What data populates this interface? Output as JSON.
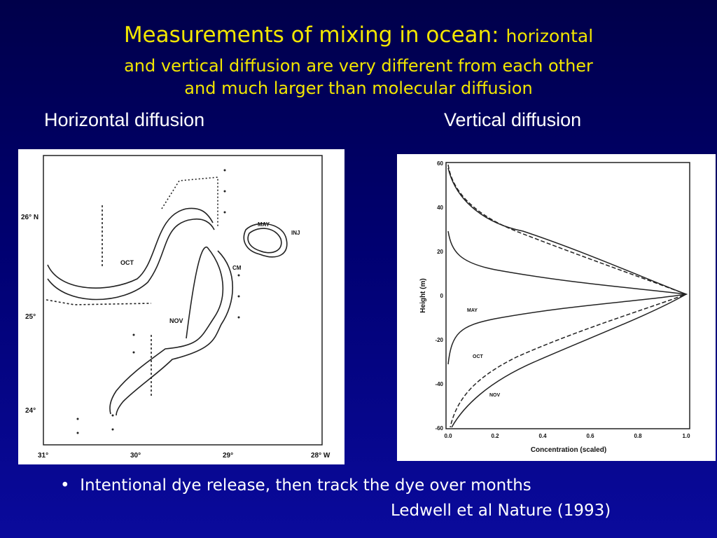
{
  "title": {
    "main": "Measurements of mixing in ocean:",
    "sub": "horizontal",
    "line2": "and vertical diffusion are very different from each other",
    "line3": "and much larger than molecular diffusion"
  },
  "panels": [
    {
      "heading": "Horizontal diffusion",
      "figure": {
        "lat_labels": [
          "26° N",
          "25°",
          "24°"
        ],
        "lon_labels": [
          "31°",
          "30°",
          "29°",
          "28° W"
        ],
        "labels": [
          "MAY",
          "INJ",
          "OCT",
          "CM",
          "NOV"
        ]
      }
    },
    {
      "heading": "Vertical diffusion",
      "figure": {
        "yticks": [
          "60",
          "40",
          "20",
          "0",
          "-20",
          "-40",
          "-60"
        ],
        "xticks": [
          "0.0",
          "0.2",
          "0.4",
          "0.6",
          "0.8",
          "1.0"
        ],
        "ylabel": "Height (m)",
        "xlabel": "Concentration (scaled)",
        "labels": [
          "MAY",
          "OCT",
          "NOV"
        ]
      }
    }
  ],
  "bullets": [
    "Intentional dye release, then track the dye over months"
  ],
  "citation": "Ledwell et al Nature (1993)"
}
